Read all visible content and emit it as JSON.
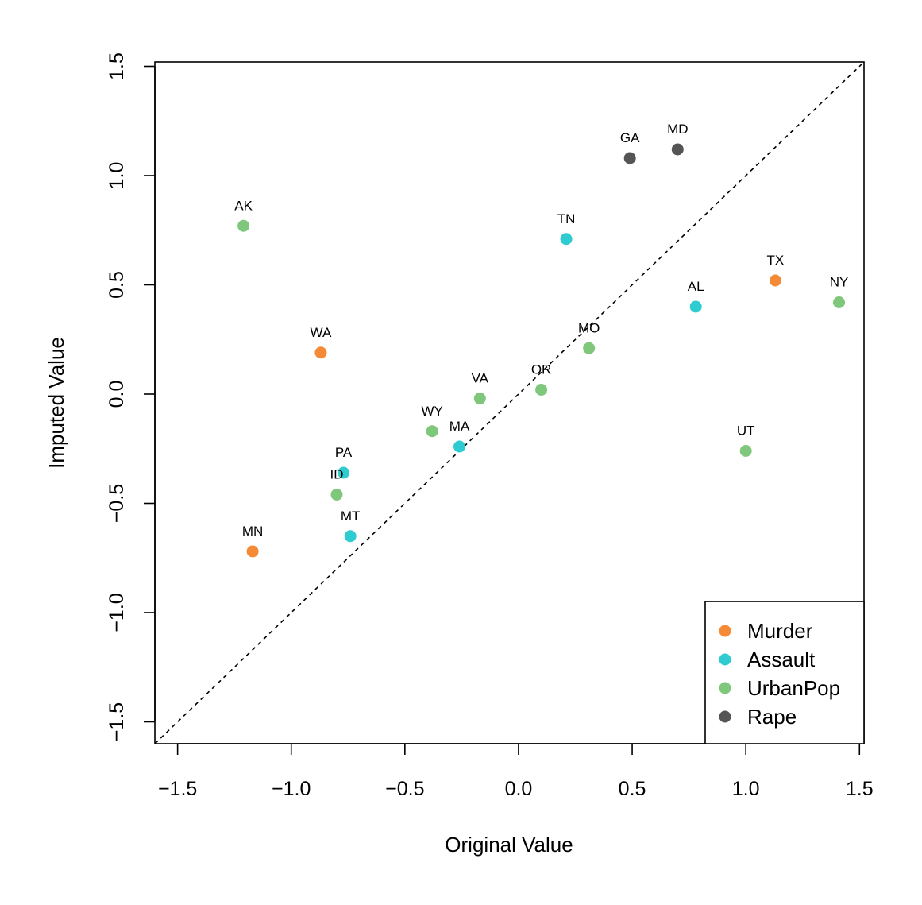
{
  "chart_data": {
    "type": "scatter",
    "title": "",
    "xlabel": "Original Value",
    "ylabel": "Imputed Value",
    "xlim": [
      -1.6,
      1.52
    ],
    "ylim": [
      -1.6,
      1.52
    ],
    "xticks": [
      -1.5,
      -1.0,
      -0.5,
      0.0,
      0.5,
      1.0,
      1.5
    ],
    "yticks": [
      -1.5,
      -1.0,
      -0.5,
      0.0,
      0.5,
      1.0,
      1.5
    ],
    "xtick_labels": [
      "−1.5",
      "−1.0",
      "−0.5",
      "0.0",
      "0.5",
      "1.0",
      "1.5"
    ],
    "ytick_labels": [
      "−1.5",
      "−1.0",
      "−0.5",
      "0.0",
      "0.5",
      "1.0",
      "1.5"
    ],
    "reference_line": "y = x (dashed)",
    "legend_position": "bottom-right",
    "series": [
      {
        "name": "Murder",
        "color": "#F58A36",
        "points": [
          {
            "label": "WA",
            "x": -0.87,
            "y": 0.19
          },
          {
            "label": "MN",
            "x": -1.17,
            "y": -0.72
          },
          {
            "label": "TX",
            "x": 1.13,
            "y": 0.52
          }
        ]
      },
      {
        "name": "Assault",
        "color": "#2ECBD0",
        "points": [
          {
            "label": "TN",
            "x": 0.21,
            "y": 0.71
          },
          {
            "label": "AL",
            "x": 0.78,
            "y": 0.4
          },
          {
            "label": "MA",
            "x": -0.26,
            "y": -0.24
          },
          {
            "label": "PA",
            "x": -0.77,
            "y": -0.36
          },
          {
            "label": "MT",
            "x": -0.74,
            "y": -0.65
          }
        ]
      },
      {
        "name": "UrbanPop",
        "color": "#7FC77A",
        "points": [
          {
            "label": "AK",
            "x": -1.21,
            "y": 0.77
          },
          {
            "label": "NY",
            "x": 1.41,
            "y": 0.42
          },
          {
            "label": "MO",
            "x": 0.31,
            "y": 0.21
          },
          {
            "label": "OR",
            "x": 0.1,
            "y": 0.02
          },
          {
            "label": "VA",
            "x": -0.17,
            "y": -0.02
          },
          {
            "label": "WY",
            "x": -0.38,
            "y": -0.17
          },
          {
            "label": "ID",
            "x": -0.8,
            "y": -0.46
          },
          {
            "label": "UT",
            "x": 1.0,
            "y": -0.26
          }
        ]
      },
      {
        "name": "Rape",
        "color": "#555555",
        "points": [
          {
            "label": "GA",
            "x": 0.49,
            "y": 1.08
          },
          {
            "label": "MD",
            "x": 0.7,
            "y": 1.12
          }
        ]
      }
    ]
  }
}
